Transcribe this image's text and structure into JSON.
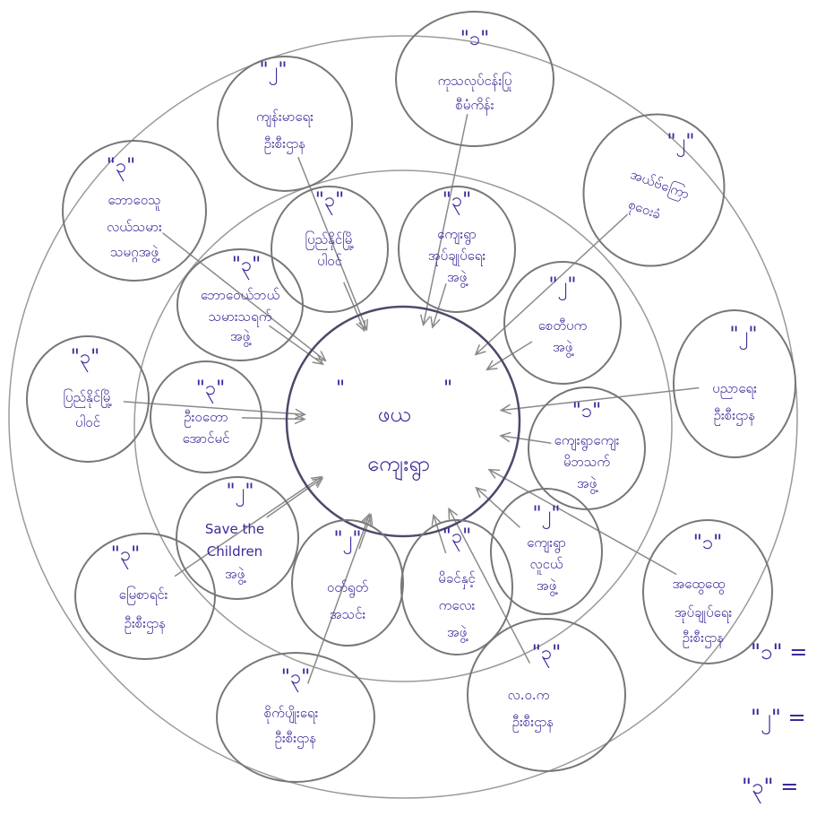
{
  "colors": {
    "ink": "#3a2a9a",
    "pencil": "#8a8a8a",
    "center_ring": "#4a4a6a",
    "background": "#ffffff"
  },
  "center": {
    "rank": "ဖယ",
    "label": "ကျေးရွာ"
  },
  "inner_nodes": [
    {
      "rank": "\"၃\"",
      "lines": [
        "ပြည်နိုင်မြို့",
        "ပါဝင်"
      ]
    },
    {
      "rank": "\"၃\"",
      "lines": [
        "ကျေးရွာ",
        "အုပ်ချုပ်ရေး",
        "အဖွဲ့"
      ]
    },
    {
      "rank": "\"၂\"",
      "lines": [
        "စေတီပက",
        "အဖွဲ့"
      ]
    },
    {
      "rank": "\"၁\"",
      "lines": [
        "ကျေးရွာကျေး",
        "မိဘသက်",
        "အဖွဲ့"
      ]
    },
    {
      "rank": "\"၂\"",
      "lines": [
        "ကျေးရွာ",
        "လူငယ်",
        "အဖွဲ့"
      ]
    },
    {
      "rank": "\"၃\"",
      "lines": [
        "မိခင်နှင့်",
        "ကလေး",
        "အဖွဲ့"
      ]
    },
    {
      "rank": "\"၂\"",
      "lines": [
        "ဝတ်ရွတ်",
        "အသင်း"
      ]
    },
    {
      "rank": "\"၂\"",
      "lines": [
        "Save the",
        "Children",
        "အဖွဲ့"
      ]
    },
    {
      "rank": "\"၃\"",
      "lines": [
        "ဦးဝတော",
        "အောင်မင်"
      ]
    },
    {
      "rank": "\"၃\"",
      "lines": [
        "ဘောဝေယ်ဘယ်",
        "သမားသရက်",
        "အဖွဲ့"
      ]
    }
  ],
  "outer_nodes": [
    {
      "rank": "\"၁\"",
      "lines": [
        "ကုသလုပ်ငန်းပြု",
        "စီမံကိန်း"
      ]
    },
    {
      "rank": "\"၂\"",
      "lines": [
        "ကျန်းမာရေး",
        "ဦးစီးဌာန"
      ]
    },
    {
      "rank": "\"၃\"",
      "lines": [
        "ဘောဝေသူ",
        "လယ်သမား",
        "သမဂ္ဂအဖွဲ့"
      ]
    },
    {
      "rank": "\"၂\"",
      "lines": [
        "အယ်ဗ်ကြော",
        "စုဝေးခံ"
      ]
    },
    {
      "rank": "\"၂\"",
      "lines": [
        "ပညာရေး",
        "ဦးစီးဌာန"
      ]
    },
    {
      "rank": "\"၃\"",
      "lines": [
        "ပြည်နိုင်မြို့",
        "ပါဝင်"
      ]
    },
    {
      "rank": "\"၁\"",
      "lines": [
        "အထွေထွေ",
        "အုပ်ချုပ်ရေး",
        "ဦးစီးဌာန"
      ]
    },
    {
      "rank": "\"၃\"",
      "lines": [
        "မြေစာရင်း",
        "ဦးစီးဌာန"
      ]
    },
    {
      "rank": "\"၃\"",
      "lines": [
        "လ.ဝ.က",
        "ဦးစီးဌာန"
      ]
    },
    {
      "rank": "\"၃\"",
      "lines": [
        "စိုက်ပျိုးရေး",
        "ဦးစီးဌာန"
      ]
    }
  ],
  "legend": [
    {
      "label": "\"၁\" ="
    },
    {
      "label": "\"၂\" ="
    },
    {
      "label": "\"၃\" ="
    }
  ]
}
